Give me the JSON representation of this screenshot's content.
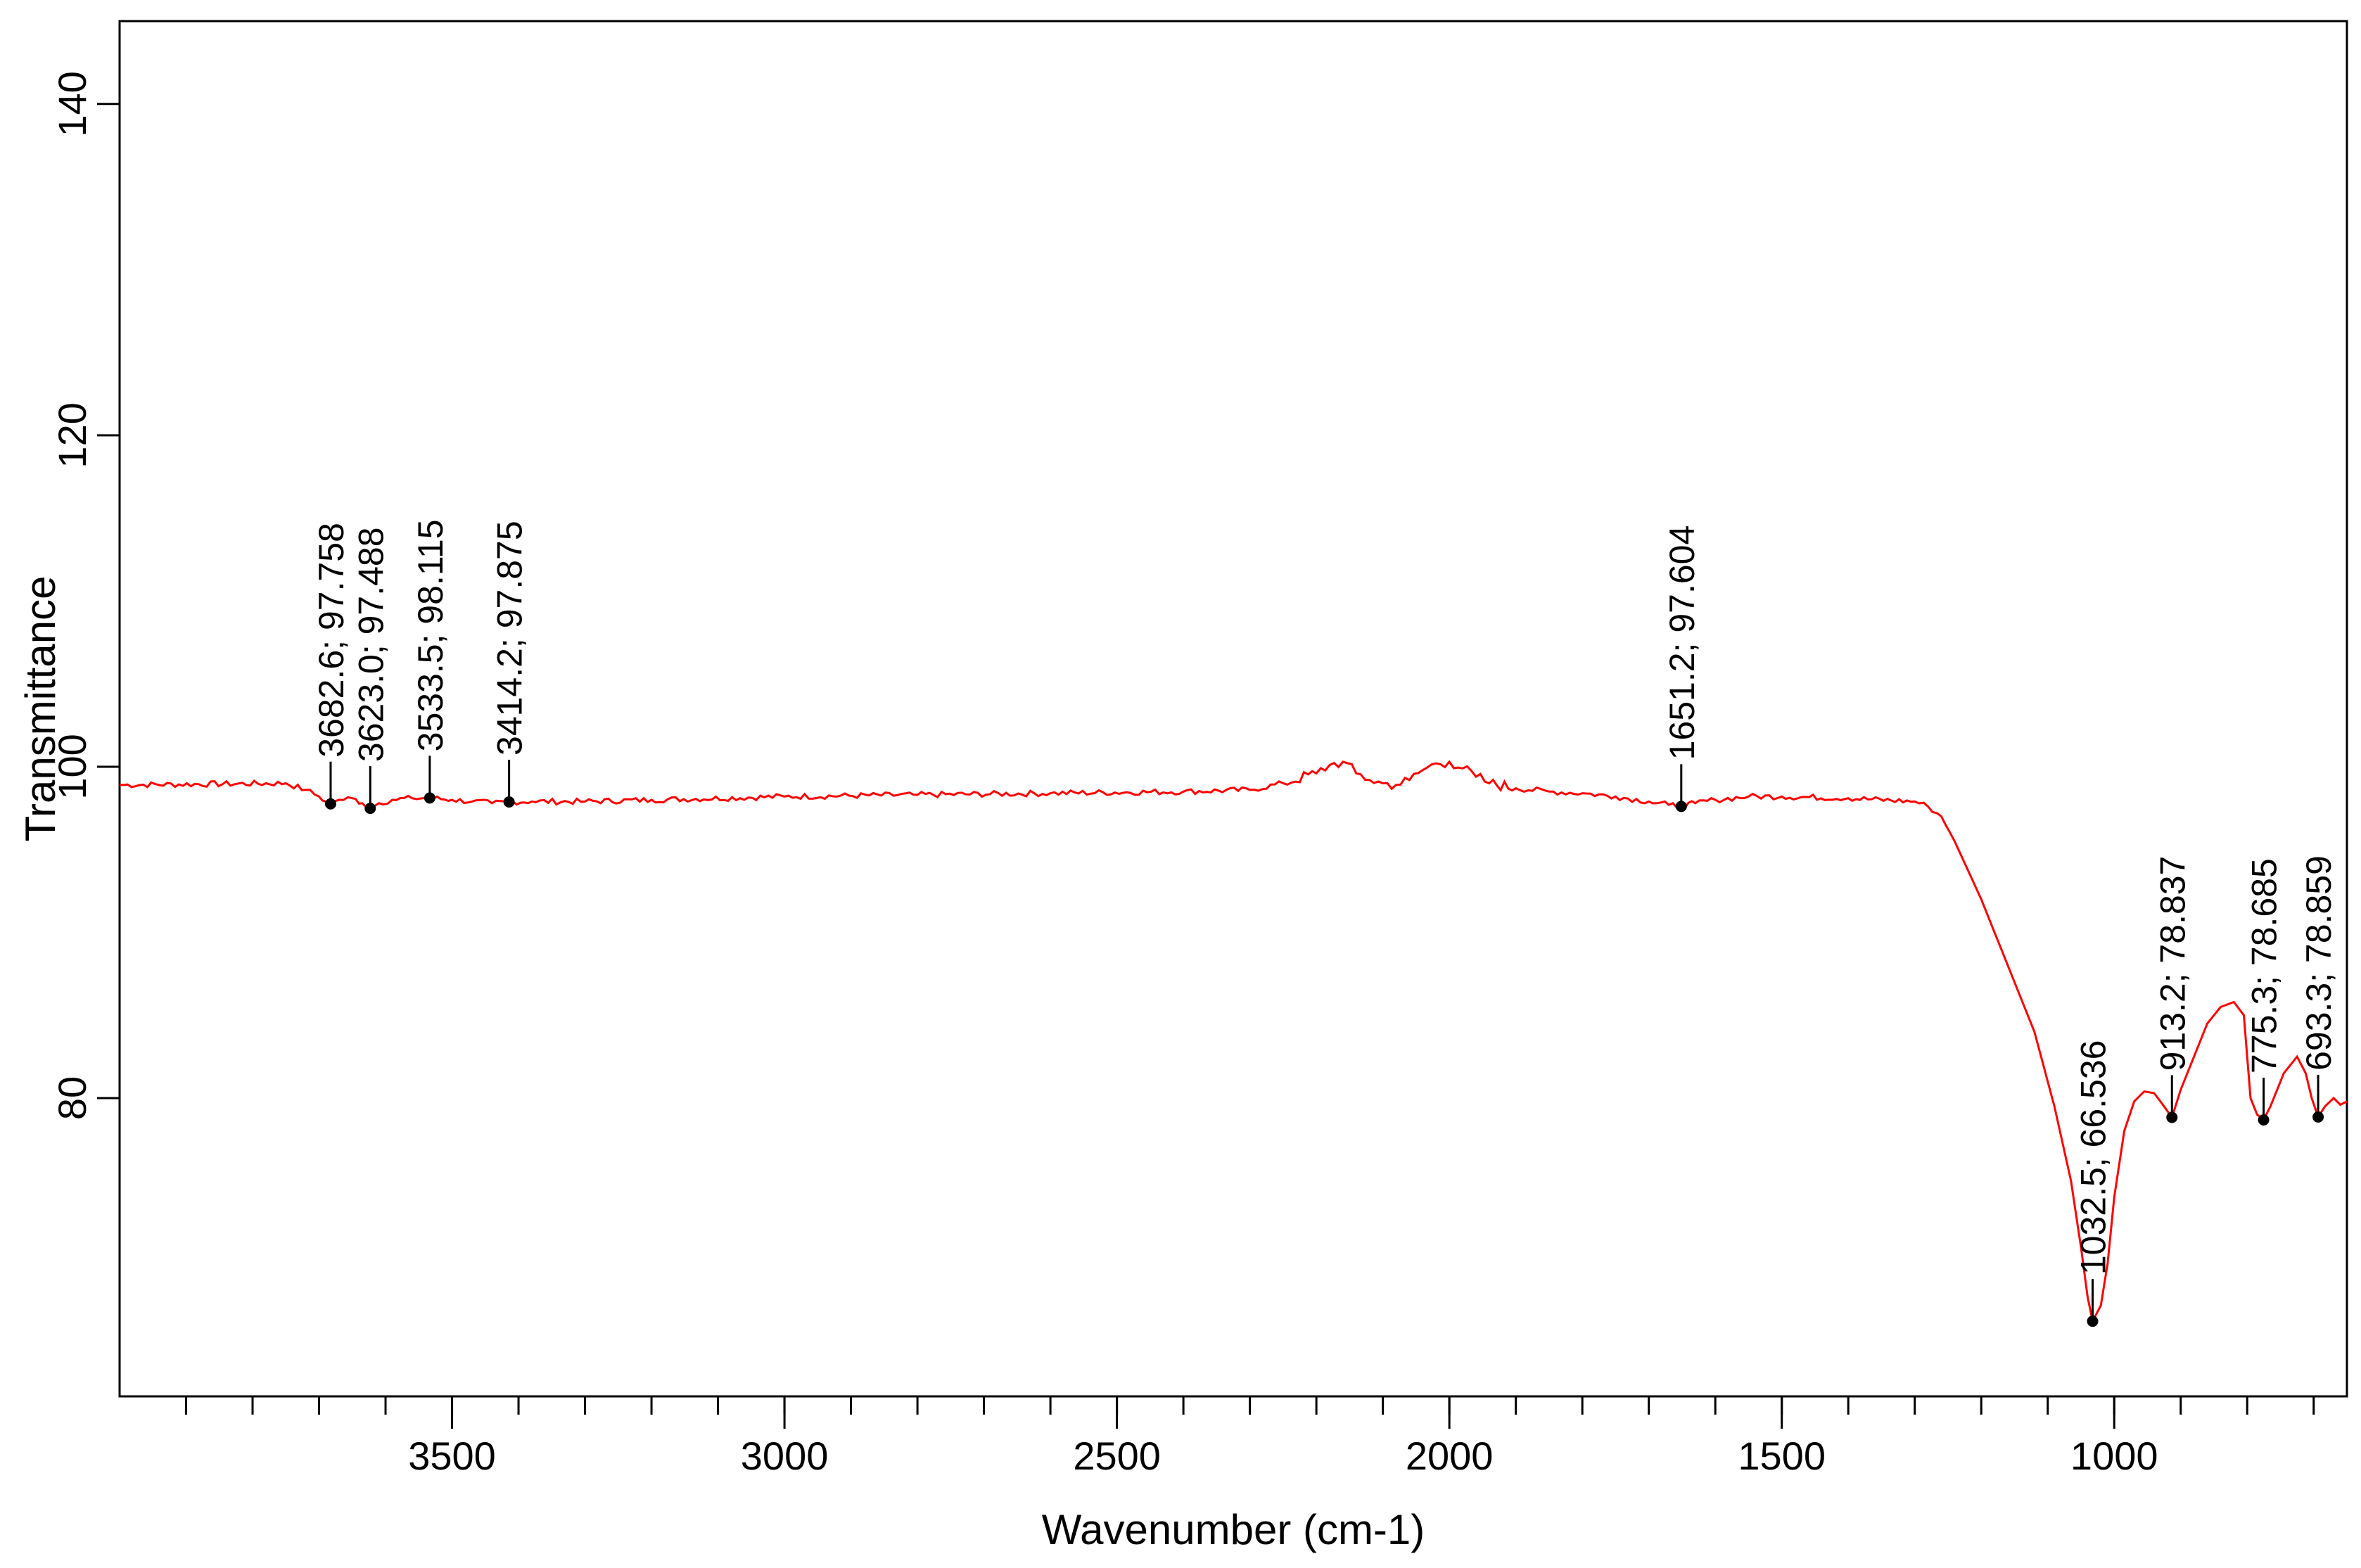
{
  "chart_data": {
    "type": "line",
    "title": "",
    "xlabel": "Wavenumber (cm-1)",
    "ylabel": "Transmittance",
    "xlim": [
      4000,
      650
    ],
    "ylim": [
      62,
      145
    ],
    "x_ticks": [
      3500,
      3000,
      2500,
      2000,
      1500,
      1000
    ],
    "x_tick_labels": [
      "3500",
      "3000",
      "2500",
      "2000",
      "1500",
      "1000"
    ],
    "x_minor_step": 100,
    "y_ticks": [
      80,
      100,
      120,
      140
    ],
    "y_tick_labels": [
      "80",
      "100",
      "120",
      "140"
    ],
    "grid": false,
    "legend": "none",
    "series": [
      {
        "name": "spectrum",
        "color": "#ff0000",
        "x": [
          4000,
          3750,
          3720,
          3700,
          3690,
          3682.6,
          3670,
          3650,
          3635,
          3623.0,
          3610,
          3590,
          3560,
          3533.5,
          3500,
          3470,
          3440,
          3414.2,
          3380,
          3300,
          3200,
          3000,
          2800,
          2600,
          2400,
          2300,
          2250,
          2200,
          2180,
          2160,
          2140,
          2120,
          2100,
          2080,
          2060,
          2040,
          2020,
          2000,
          1980,
          1960,
          1940,
          1900,
          1850,
          1800,
          1750,
          1700,
          1670,
          1651.2,
          1630,
          1600,
          1550,
          1500,
          1400,
          1300,
          1280,
          1260,
          1240,
          1200,
          1160,
          1120,
          1090,
          1065,
          1050,
          1040,
          1032.5,
          1020,
          1010,
          1000,
          985,
          970,
          955,
          940,
          925,
          913.2,
          900,
          880,
          860,
          840,
          820,
          805,
          795,
          785,
          775.3,
          765,
          755,
          745,
          735,
          725,
          712,
          703,
          693.3,
          683,
          670,
          660,
          650
        ],
        "values": [
          98.9,
          99.0,
          98.6,
          98.2,
          97.9,
          97.76,
          98.0,
          98.1,
          97.8,
          97.49,
          97.8,
          98.0,
          98.1,
          98.12,
          98.0,
          97.9,
          97.8,
          97.88,
          97.9,
          97.9,
          98.0,
          98.2,
          98.3,
          98.4,
          98.5,
          98.6,
          99.0,
          99.6,
          100.1,
          100.3,
          99.6,
          99.2,
          99.0,
          98.9,
          99.2,
          99.8,
          100.2,
          100.3,
          99.9,
          99.4,
          99.0,
          98.7,
          98.5,
          98.4,
          98.2,
          97.9,
          97.7,
          97.6,
          97.8,
          98.0,
          98.2,
          98.2,
          98.1,
          97.9,
          97.6,
          97.0,
          95.5,
          92.0,
          88.0,
          84.0,
          79.5,
          75.0,
          71.0,
          68.0,
          66.54,
          67.5,
          70.0,
          74.0,
          78.0,
          79.8,
          80.4,
          80.3,
          79.5,
          78.84,
          80.5,
          82.5,
          84.5,
          85.5,
          85.8,
          85.0,
          80.0,
          79.0,
          78.69,
          79.5,
          80.5,
          81.5,
          82.0,
          82.5,
          81.5,
          80.0,
          78.86,
          79.5,
          80.0,
          79.6,
          79.8
        ]
      }
    ],
    "annotations": [
      {
        "x": 3682.6,
        "y": 97.758,
        "label": "3682.6; 97.758"
      },
      {
        "x": 3623.0,
        "y": 97.488,
        "label": "3623.0; 97.488"
      },
      {
        "x": 3533.5,
        "y": 98.115,
        "label": "3533.5; 98.115"
      },
      {
        "x": 3414.2,
        "y": 97.875,
        "label": "3414.2; 97.875"
      },
      {
        "x": 1651.2,
        "y": 97.604,
        "label": "1651.2; 97.604"
      },
      {
        "x": 1032.5,
        "y": 66.536,
        "label": "1032.5; 66.536"
      },
      {
        "x": 913.2,
        "y": 78.837,
        "label": "913.2; 78.837"
      },
      {
        "x": 775.3,
        "y": 78.685,
        "label": "775.3; 78.685"
      },
      {
        "x": 693.3,
        "y": 78.859,
        "label": "693.3; 78.859"
      }
    ]
  }
}
